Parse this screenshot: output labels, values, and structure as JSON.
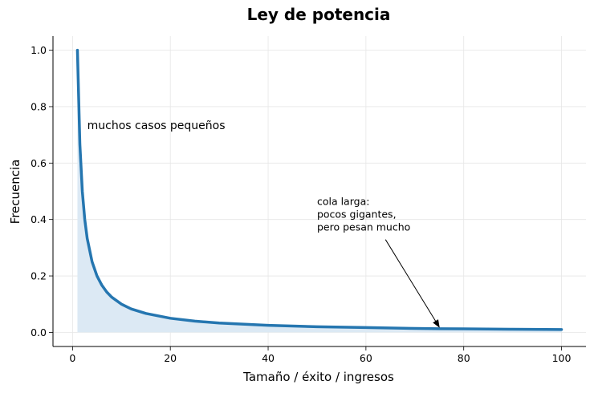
{
  "chart_data": {
    "type": "line",
    "title": "Ley de potencia",
    "xlabel": "Tamaño / éxito / ingresos",
    "ylabel": "Frecuencia",
    "xlim": [
      -4,
      105
    ],
    "ylim": [
      -0.05,
      1.05
    ],
    "xticks": [
      "0",
      "20",
      "40",
      "60",
      "80",
      "100"
    ],
    "yticks": [
      "0.0",
      "0.2",
      "0.4",
      "0.6",
      "0.8",
      "1.0"
    ],
    "grid": true,
    "series": [
      {
        "x": [
          1,
          1.5,
          2,
          2.5,
          3,
          4,
          5,
          6,
          7,
          8,
          10,
          12,
          15,
          20,
          25,
          30,
          40,
          50,
          60,
          70,
          75,
          80,
          90,
          100
        ],
        "y": [
          1.0,
          0.667,
          0.5,
          0.4,
          0.333,
          0.25,
          0.2,
          0.167,
          0.143,
          0.125,
          0.1,
          0.083,
          0.067,
          0.05,
          0.04,
          0.033,
          0.025,
          0.02,
          0.017,
          0.014,
          0.013,
          0.0125,
          0.011,
          0.01
        ],
        "color": "#2576b0",
        "fill_color": "#dce9f4"
      }
    ],
    "annotations": [
      {
        "text": "muchos casos pequeños",
        "x": 3,
        "y": 0.72
      },
      {
        "lines": [
          "cola larga:",
          "pocos gigantes,",
          "pero pesan mucho"
        ],
        "x": 50,
        "y": 0.4,
        "arrow_to": [
          75,
          0.013
        ]
      }
    ]
  }
}
